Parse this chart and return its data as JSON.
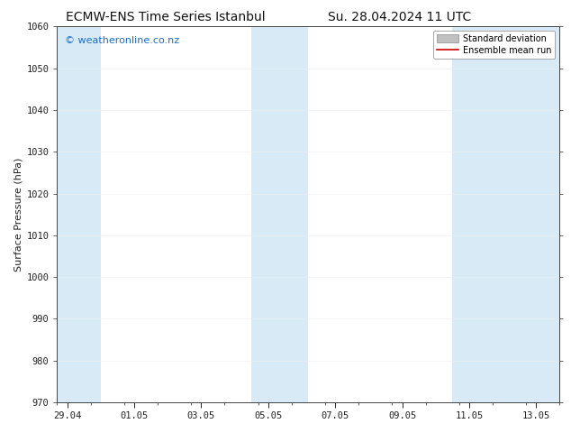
{
  "title_left": "ECMW-ENS Time Series Istanbul",
  "title_right": "Su. 28.04.2024 11 UTC",
  "ylabel": "Surface Pressure (hPa)",
  "ylim": [
    970,
    1060
  ],
  "yticks": [
    970,
    980,
    990,
    1000,
    1010,
    1020,
    1030,
    1040,
    1050,
    1060
  ],
  "xtick_labels": [
    "29.04",
    "01.05",
    "03.05",
    "05.05",
    "07.05",
    "09.05",
    "11.05",
    "13.05"
  ],
  "xtick_positions": [
    0,
    2,
    4,
    6,
    8,
    10,
    12,
    14
  ],
  "xlim": [
    -0.3,
    14.7
  ],
  "shaded_bands": [
    {
      "start": -0.3,
      "end": 1.0
    },
    {
      "start": 5.5,
      "end": 7.2
    },
    {
      "start": 11.5,
      "end": 14.7
    }
  ],
  "shade_color": "#d8eaf6",
  "background_color": "#ffffff",
  "plot_bg_color": "#ffffff",
  "title_fontsize": 10,
  "axis_label_fontsize": 8,
  "tick_fontsize": 7.5,
  "watermark_text": "© weatheronline.co.nz",
  "watermark_color": "#1a6ec0",
  "watermark_fontsize": 8,
  "legend_std_color": "#c0c0c0",
  "legend_mean_color": "#cc0000",
  "grid_color": "#e8e8e8",
  "tick_color": "#222222",
  "border_color": "#444444",
  "legend_fontsize": 7,
  "legend_entry_std": "Standard deviation",
  "legend_entry_mean": "Ensemble mean run"
}
